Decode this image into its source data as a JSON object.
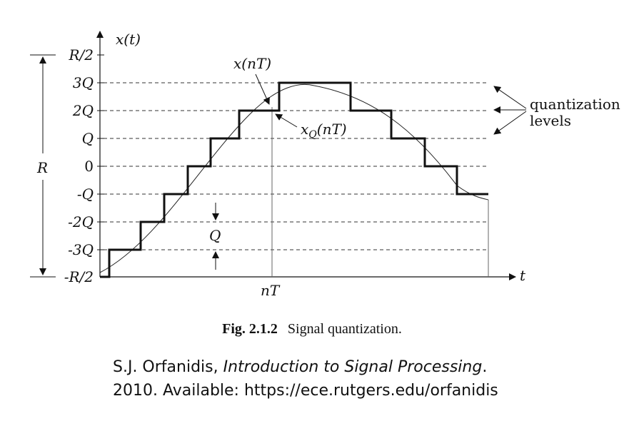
{
  "diagram": {
    "y_axis_label": "x(t)",
    "x_axis_label": "t",
    "level_labels": [
      "R/2",
      "3Q",
      "2Q",
      "Q",
      "0",
      "-Q",
      "-2Q",
      "-3Q",
      "-R/2"
    ],
    "range_label": "R",
    "step_size_label": "Q",
    "sample_time_label": "nT",
    "signal_label": "x(nT)",
    "quantized_label": "x_Q(nT)",
    "quantized_label_base": "x",
    "quantized_label_sub": "Q",
    "quantized_label_arg": "(nT)",
    "levels_label_line1": "quantization",
    "levels_label_line2": "levels"
  },
  "caption": {
    "number": "Fig. 2.1.2",
    "text": "Signal quantization."
  },
  "citation": {
    "author": "S.J. Orfanidis, ",
    "title": "Introduction to Signal Processing",
    "title_suffix": ".",
    "line2": "2010. Available: https://ece.rutgers.edu/orfanidis"
  }
}
